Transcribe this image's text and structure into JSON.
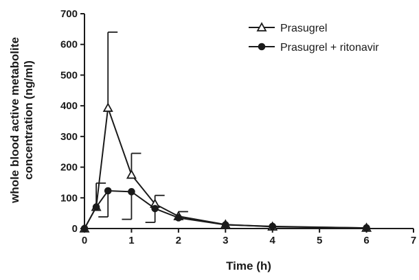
{
  "chart_data": {
    "type": "line",
    "xlabel": "Time (h)",
    "ylabel_lines": [
      "whole blood active metabolite",
      "concentration (ng/ml)"
    ],
    "xlim": [
      0,
      7
    ],
    "ylim": [
      0,
      700
    ],
    "xticks": [
      0,
      1,
      2,
      3,
      4,
      5,
      6,
      7
    ],
    "yticks": [
      0,
      100,
      200,
      300,
      400,
      500,
      600,
      700
    ],
    "grid": false,
    "legend_position": "top-right",
    "series": [
      {
        "name": "Prasugrel",
        "marker": "open-triangle",
        "x": [
          0,
          0.25,
          0.5,
          1,
          1.5,
          2,
          3,
          4,
          6
        ],
        "y": [
          0,
          70,
          393,
          175,
          80,
          40,
          13,
          6,
          2
        ],
        "error_upper": [
          null,
          78,
          247,
          70,
          28,
          15,
          null,
          null,
          null
        ],
        "error_lower": [
          null,
          null,
          null,
          null,
          null,
          null,
          null,
          null,
          null
        ]
      },
      {
        "name": "Prasugrel + ritonavir",
        "marker": "filled-circle",
        "x": [
          0,
          0.25,
          0.5,
          1,
          1.5,
          2,
          3,
          4,
          6
        ],
        "y": [
          0,
          70,
          123,
          120,
          65,
          35,
          12,
          7,
          2
        ],
        "error_upper": [
          null,
          null,
          null,
          null,
          null,
          null,
          null,
          null,
          null
        ],
        "error_lower": [
          null,
          null,
          85,
          90,
          45,
          null,
          null,
          null,
          null
        ]
      }
    ]
  }
}
